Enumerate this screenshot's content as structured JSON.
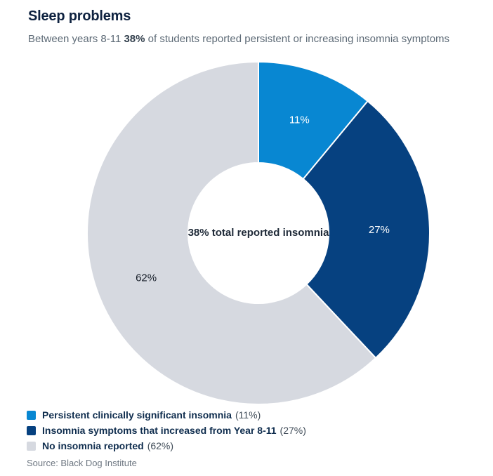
{
  "header": {
    "title": "Sleep problems",
    "subtitle_prefix": "Between years 8-11 ",
    "subtitle_bold": "38%",
    "subtitle_suffix": " of students reported persistent or increasing insomnia symptoms"
  },
  "chart_data": {
    "type": "pie",
    "style": "donut",
    "title": "Sleep problems",
    "center_label": "38% total reported insomnia",
    "start_angle_deg": 0,
    "direction": "clockwise",
    "legend_position": "bottom-left",
    "slices": [
      {
        "label": "Persistent clinically significant insomnia",
        "value": 11,
        "display": "11%",
        "color": "#0887d2",
        "label_color": "#ffffff"
      },
      {
        "label": "Insomnia symptoms that increased from Year 8-11",
        "value": 27,
        "display": "27%",
        "color": "#064180",
        "label_color": "#ffffff"
      },
      {
        "label": "No insomnia reported",
        "value": 62,
        "display": "62%",
        "color": "#d6d9e0",
        "label_color": "#161d28"
      }
    ]
  },
  "legend": {
    "items": [
      {
        "label": "Persistent clinically significant insomnia",
        "pct": "(11%)"
      },
      {
        "label": "Insomnia symptoms that increased from Year 8-11",
        "pct": "(27%)"
      },
      {
        "label": "No insomnia reported",
        "pct": "(62%)"
      }
    ]
  },
  "source": "Source: Black Dog Institute",
  "colors": {
    "title": "#0e2240",
    "subtitle": "#5d6a76",
    "light_blue": "#0887d2",
    "dark_blue": "#064180",
    "gray": "#d6d9e0",
    "background": "#ffffff"
  }
}
